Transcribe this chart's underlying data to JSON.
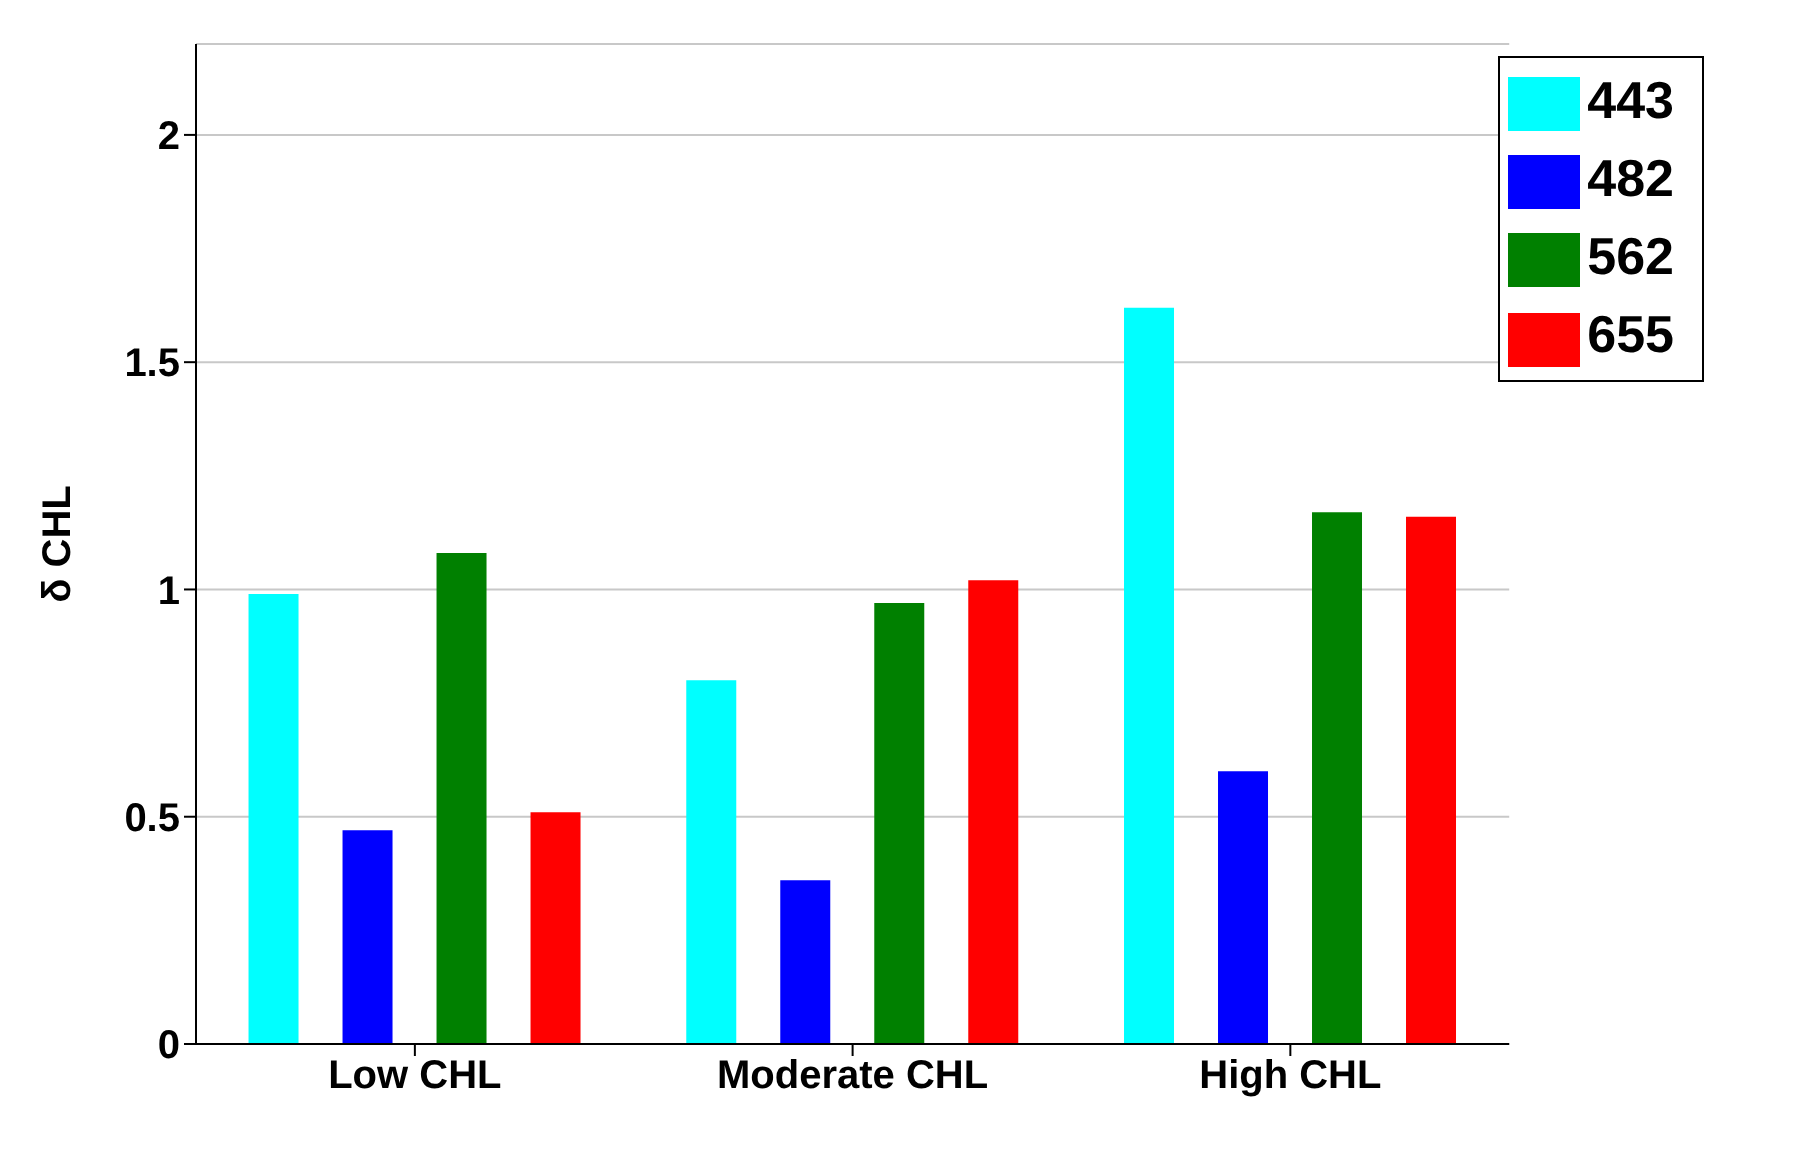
{
  "chart_data": {
    "type": "bar",
    "ylabel": "δ CHL",
    "categories": [
      "Low CHL",
      "Moderate CHL",
      "High CHL"
    ],
    "series": [
      {
        "name": "443",
        "color": "#00ffff",
        "values": [
          0.99,
          0.8,
          1.62
        ]
      },
      {
        "name": "482",
        "color": "#0000ff",
        "values": [
          0.47,
          0.36,
          0.6
        ]
      },
      {
        "name": "562",
        "color": "#008000",
        "values": [
          1.08,
          0.97,
          1.17
        ]
      },
      {
        "name": "655",
        "color": "#ff0000",
        "values": [
          0.51,
          1.02,
          1.16
        ]
      }
    ],
    "ylim": [
      0,
      2.2
    ],
    "yticks": [
      0,
      0.5,
      1,
      1.5,
      2
    ],
    "grid": "y",
    "legend": "top right"
  }
}
